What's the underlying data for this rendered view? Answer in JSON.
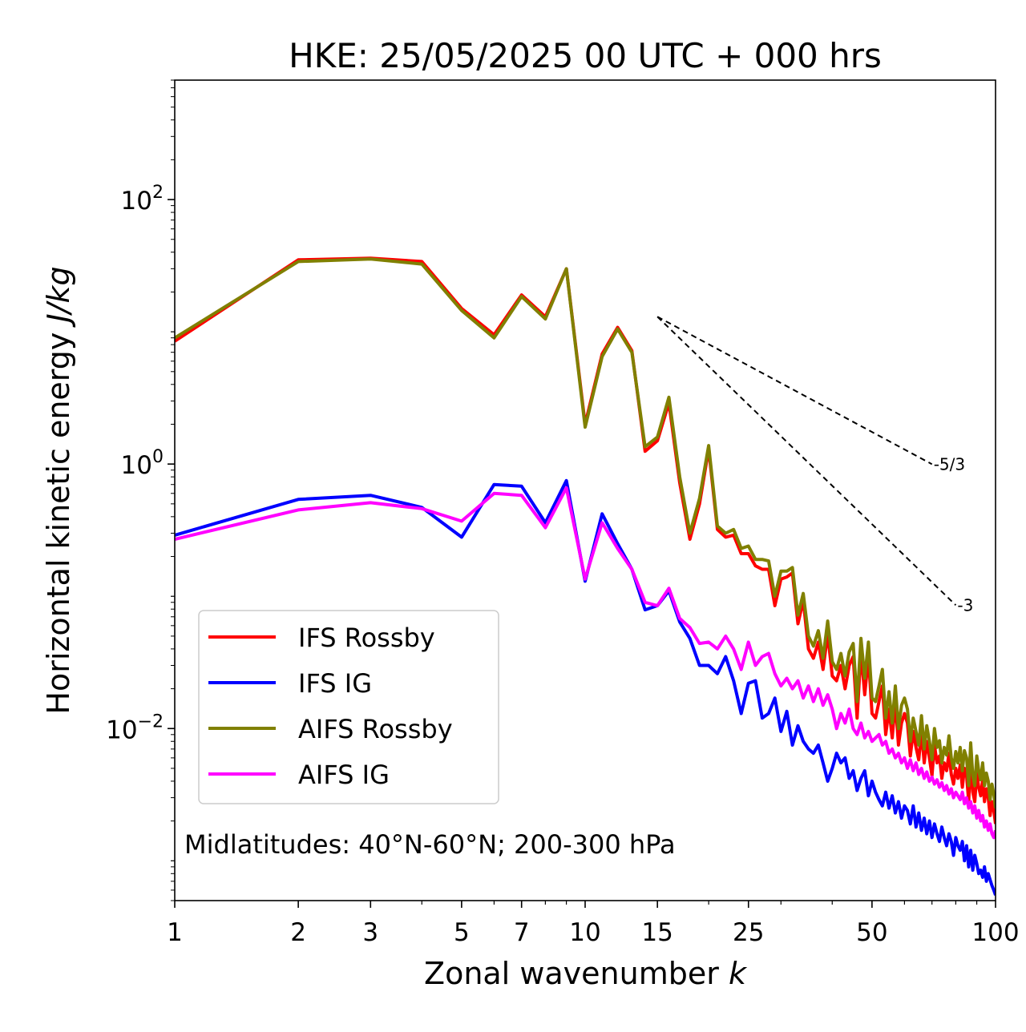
{
  "chart_data": {
    "type": "line",
    "title": "HKE: 25/05/2025 00 UTC + 000 hrs",
    "xlabel": "Zonal wavenumber",
    "xlabel_var": "k",
    "ylabel": "Horizontal kinetic energy",
    "ylabel_unit": "J/kg",
    "xscale": "log",
    "yscale": "log",
    "xlim": [
      1,
      100
    ],
    "ylim": [
      0.0005,
      800
    ],
    "x_ticks": [
      1,
      2,
      3,
      5,
      7,
      10,
      15,
      25,
      50,
      100
    ],
    "x_tick_labels": [
      "1",
      "2",
      "3",
      "5",
      "7",
      "10",
      "15",
      "25",
      "50",
      "100"
    ],
    "y_ticks": [
      100,
      1,
      0.01
    ],
    "y_tick_labels": [
      {
        "base": "10",
        "exp": "2"
      },
      {
        "base": "10",
        "exp": "0"
      },
      {
        "base": "10",
        "exp": "−2"
      }
    ],
    "grid": false,
    "legend_position": "lower-left",
    "annotation": "Midlatitudes: 40°N-60°N; 200-300 hPa",
    "reference_lines": [
      {
        "label": "-5/3",
        "slope": -1.6667,
        "x_start": 15,
        "x_end": 70,
        "y_start": 13.0
      },
      {
        "label": "-3",
        "slope": -3,
        "x_start": 15,
        "x_end": 80,
        "y_start": 13.0
      }
    ],
    "series": [
      {
        "name": "IFS Rossby",
        "color": "#ff0000",
        "width": 4,
        "x": [
          1,
          2,
          3,
          4,
          5,
          6,
          7,
          8,
          9,
          10,
          11,
          12,
          13,
          14,
          15,
          16,
          17,
          18,
          19,
          20,
          21,
          22,
          23,
          24,
          25,
          26,
          27,
          28,
          29,
          30,
          31,
          32,
          33,
          34,
          35,
          36,
          37,
          38,
          39,
          40,
          41,
          42,
          43,
          44,
          45,
          46,
          47,
          48,
          49,
          50,
          51,
          52,
          53,
          54,
          55,
          56,
          57,
          58,
          59,
          60,
          61,
          62,
          63,
          64,
          65,
          66,
          67,
          68,
          69,
          70,
          71,
          72,
          73,
          74,
          75,
          76,
          77,
          78,
          79,
          80,
          81,
          82,
          83,
          84,
          85,
          86,
          87,
          88,
          89,
          90,
          91,
          92,
          93,
          94,
          95,
          96,
          97,
          98,
          99,
          100
        ],
        "y": [
          8.5,
          35,
          36,
          34,
          15,
          9.5,
          19,
          13,
          30,
          2.0,
          6.8,
          10.8,
          7.2,
          1.25,
          1.5,
          2.9,
          0.72,
          0.27,
          0.5,
          1.3,
          0.32,
          0.28,
          0.29,
          0.21,
          0.21,
          0.17,
          0.16,
          0.16,
          0.085,
          0.135,
          0.14,
          0.15,
          0.062,
          0.093,
          0.04,
          0.034,
          0.045,
          0.028,
          0.052,
          0.025,
          0.023,
          0.03,
          0.02,
          0.03,
          0.035,
          0.012,
          0.038,
          0.018,
          0.035,
          0.013,
          0.012,
          0.016,
          0.021,
          0.009,
          0.014,
          0.0085,
          0.016,
          0.0075,
          0.011,
          0.013,
          0.011,
          0.0062,
          0.0095,
          0.0072,
          0.0058,
          0.0095,
          0.0055,
          0.008,
          0.006,
          0.0044,
          0.0075,
          0.0055,
          0.0062,
          0.0042,
          0.0055,
          0.0048,
          0.0065,
          0.0045,
          0.0038,
          0.005,
          0.0042,
          0.0053,
          0.0036,
          0.005,
          0.0044,
          0.0028,
          0.0058,
          0.0033,
          0.0028,
          0.0046,
          0.0036,
          0.0031,
          0.0041,
          0.0028,
          0.0035,
          0.003,
          0.0022,
          0.0028,
          0.0024,
          0.0019
        ]
      },
      {
        "name": "IFS IG",
        "color": "#0000ff",
        "width": 4,
        "x": [
          1,
          2,
          3,
          4,
          5,
          6,
          7,
          8,
          9,
          10,
          11,
          12,
          13,
          14,
          15,
          16,
          17,
          18,
          19,
          20,
          21,
          22,
          23,
          24,
          25,
          26,
          27,
          28,
          29,
          30,
          31,
          32,
          33,
          34,
          35,
          36,
          37,
          38,
          39,
          40,
          41,
          42,
          43,
          44,
          45,
          46,
          47,
          48,
          49,
          50,
          51,
          52,
          53,
          54,
          55,
          56,
          57,
          58,
          59,
          60,
          61,
          62,
          63,
          64,
          65,
          66,
          67,
          68,
          69,
          70,
          71,
          72,
          73,
          74,
          75,
          76,
          77,
          78,
          79,
          80,
          81,
          82,
          83,
          84,
          85,
          86,
          87,
          88,
          89,
          90,
          91,
          92,
          93,
          94,
          95,
          96,
          97,
          98,
          99,
          100
        ],
        "y": [
          0.29,
          0.54,
          0.58,
          0.47,
          0.28,
          0.7,
          0.68,
          0.36,
          0.75,
          0.13,
          0.42,
          0.25,
          0.16,
          0.079,
          0.085,
          0.11,
          0.064,
          0.048,
          0.03,
          0.03,
          0.026,
          0.035,
          0.023,
          0.013,
          0.022,
          0.023,
          0.012,
          0.013,
          0.017,
          0.0095,
          0.0135,
          0.0075,
          0.0105,
          0.008,
          0.007,
          0.0065,
          0.0075,
          0.0055,
          0.004,
          0.005,
          0.0065,
          0.0055,
          0.006,
          0.0042,
          0.0048,
          0.0034,
          0.0042,
          0.0048,
          0.0031,
          0.004,
          0.0033,
          0.0029,
          0.0026,
          0.0033,
          0.0025,
          0.0031,
          0.0023,
          0.0028,
          0.0021,
          0.0026,
          0.0024,
          0.0019,
          0.0026,
          0.0018,
          0.0023,
          0.0017,
          0.0021,
          0.0016,
          0.002,
          0.0015,
          0.0019,
          0.0016,
          0.0014,
          0.0018,
          0.0015,
          0.0013,
          0.0016,
          0.0014,
          0.0011,
          0.0015,
          0.0013,
          0.0012,
          0.0014,
          0.001,
          0.0013,
          0.0009,
          0.0012,
          0.00085,
          0.0011,
          0.00095,
          0.0008,
          0.00085,
          0.00075,
          0.0009,
          0.0007,
          0.0008,
          0.00072,
          0.00065,
          0.0006,
          0.00055
        ]
      },
      {
        "name": "AIFS Rossby",
        "color": "#808000",
        "width": 4,
        "x": [
          1,
          2,
          3,
          4,
          5,
          6,
          7,
          8,
          9,
          10,
          11,
          12,
          13,
          14,
          15,
          16,
          17,
          18,
          19,
          20,
          21,
          22,
          23,
          24,
          25,
          26,
          27,
          28,
          29,
          30,
          31,
          32,
          33,
          34,
          35,
          36,
          37,
          38,
          39,
          40,
          41,
          42,
          43,
          44,
          45,
          46,
          47,
          48,
          49,
          50,
          51,
          52,
          53,
          54,
          55,
          56,
          57,
          58,
          59,
          60,
          61,
          62,
          63,
          64,
          65,
          66,
          67,
          68,
          69,
          70,
          71,
          72,
          73,
          74,
          75,
          76,
          77,
          78,
          79,
          80,
          81,
          82,
          83,
          84,
          85,
          86,
          87,
          88,
          89,
          90,
          91,
          92,
          93,
          94,
          95,
          96,
          97,
          98,
          99,
          100
        ],
        "y": [
          9.0,
          34,
          35.5,
          32.5,
          14.5,
          9.0,
          18.5,
          12.5,
          30,
          1.9,
          6.5,
          10.5,
          7.0,
          1.35,
          1.6,
          3.2,
          0.8,
          0.3,
          0.55,
          1.38,
          0.34,
          0.3,
          0.32,
          0.23,
          0.24,
          0.19,
          0.19,
          0.185,
          0.1,
          0.155,
          0.155,
          0.165,
          0.072,
          0.105,
          0.05,
          0.042,
          0.055,
          0.034,
          0.065,
          0.032,
          0.028,
          0.037,
          0.025,
          0.038,
          0.044,
          0.016,
          0.048,
          0.024,
          0.045,
          0.017,
          0.016,
          0.021,
          0.028,
          0.012,
          0.019,
          0.011,
          0.021,
          0.01,
          0.015,
          0.017,
          0.014,
          0.008,
          0.012,
          0.0095,
          0.0075,
          0.0125,
          0.007,
          0.0105,
          0.008,
          0.0058,
          0.01,
          0.0072,
          0.0081,
          0.0055,
          0.0072,
          0.0063,
          0.0088,
          0.006,
          0.005,
          0.0067,
          0.0055,
          0.0072,
          0.0048,
          0.0068,
          0.006,
          0.0037,
          0.0078,
          0.0044,
          0.0037,
          0.0062,
          0.0048,
          0.0041,
          0.0055,
          0.0037,
          0.0046,
          0.004,
          0.0029,
          0.0038,
          0.0032,
          0.0025
        ]
      },
      {
        "name": "AIFS IG",
        "color": "#ff00ff",
        "width": 4,
        "x": [
          1,
          2,
          3,
          4,
          5,
          6,
          7,
          8,
          9,
          10,
          11,
          12,
          13,
          14,
          15,
          16,
          17,
          18,
          19,
          20,
          21,
          22,
          23,
          24,
          25,
          26,
          27,
          28,
          29,
          30,
          31,
          32,
          33,
          34,
          35,
          36,
          37,
          38,
          39,
          40,
          41,
          42,
          43,
          44,
          45,
          46,
          47,
          48,
          49,
          50,
          51,
          52,
          53,
          54,
          55,
          56,
          57,
          58,
          59,
          60,
          61,
          62,
          63,
          64,
          65,
          66,
          67,
          68,
          69,
          70,
          71,
          72,
          73,
          74,
          75,
          76,
          77,
          78,
          79,
          80,
          81,
          82,
          83,
          84,
          85,
          86,
          87,
          88,
          89,
          90,
          91,
          92,
          93,
          94,
          95,
          96,
          97,
          98,
          99,
          100
        ],
        "y": [
          0.27,
          0.45,
          0.51,
          0.46,
          0.37,
          0.6,
          0.58,
          0.33,
          0.66,
          0.135,
          0.36,
          0.23,
          0.16,
          0.09,
          0.085,
          0.115,
          0.068,
          0.058,
          0.044,
          0.045,
          0.04,
          0.05,
          0.04,
          0.028,
          0.045,
          0.03,
          0.035,
          0.037,
          0.026,
          0.021,
          0.024,
          0.02,
          0.023,
          0.017,
          0.021,
          0.016,
          0.02,
          0.015,
          0.018,
          0.014,
          0.01,
          0.013,
          0.011,
          0.014,
          0.01,
          0.009,
          0.011,
          0.0085,
          0.0095,
          0.008,
          0.0085,
          0.009,
          0.0075,
          0.008,
          0.0065,
          0.007,
          0.006,
          0.0065,
          0.0055,
          0.006,
          0.005,
          0.0058,
          0.0048,
          0.0055,
          0.0045,
          0.005,
          0.0042,
          0.0047,
          0.004,
          0.0043,
          0.0038,
          0.0041,
          0.0036,
          0.0039,
          0.0034,
          0.0037,
          0.0032,
          0.0035,
          0.003,
          0.0033,
          0.0031,
          0.0029,
          0.0033,
          0.0027,
          0.003,
          0.0025,
          0.0028,
          0.0023,
          0.0026,
          0.0021,
          0.0024,
          0.002,
          0.0022,
          0.0018,
          0.002,
          0.0017,
          0.0019,
          0.0016,
          0.0015,
          0.0017
        ]
      }
    ]
  }
}
